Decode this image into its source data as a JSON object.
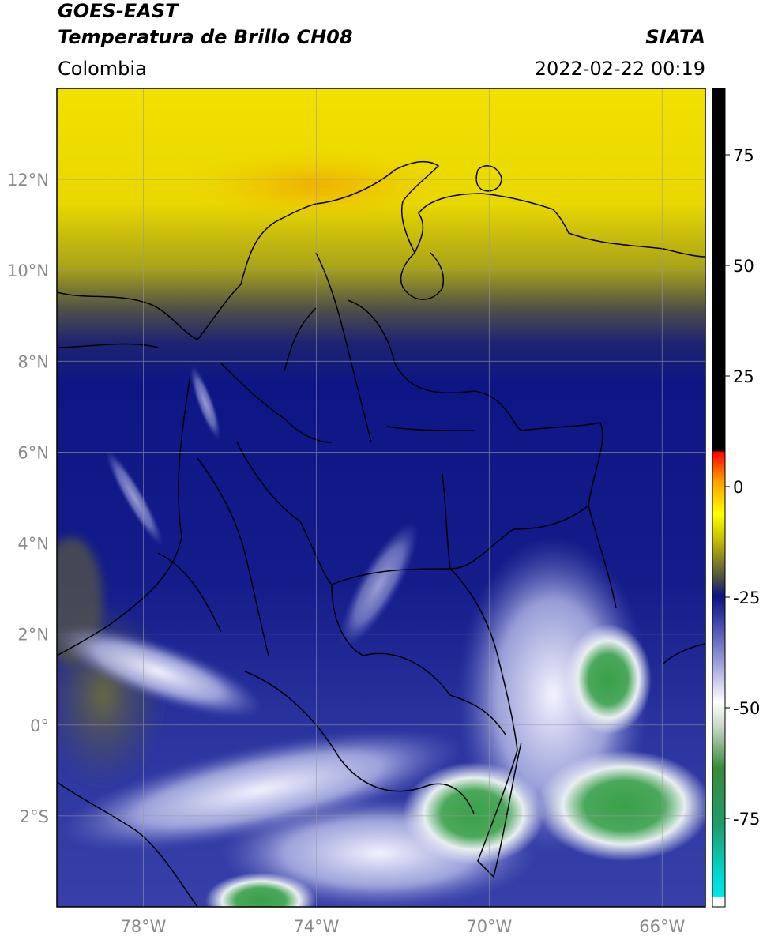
{
  "header": {
    "satellite": "GOES-EAST",
    "product": "Temperatura de Brillo CH08",
    "brand": "SIATA",
    "region": "Colombia",
    "timestamp": "2022-02-22 00:19"
  },
  "map": {
    "lon_ticks": [
      "78°W",
      "74°W",
      "70°W",
      "66°W"
    ],
    "lat_ticks": [
      "12°N",
      "10°N",
      "8°N",
      "6°N",
      "4°N",
      "2°N",
      "0°",
      "2°S"
    ],
    "lon_values": [
      -78,
      -74,
      -70,
      -66
    ],
    "lat_values": [
      12,
      10,
      8,
      6,
      4,
      2,
      0,
      -2
    ],
    "extent": {
      "lon_min": -80,
      "lon_max": -65,
      "lat_min": -4,
      "lat_max": 14
    },
    "grid": true
  },
  "colorbar": {
    "ticks": [
      "75",
      "50",
      "25",
      "0",
      "-25",
      "-50",
      "-75"
    ],
    "tick_values": [
      75,
      50,
      25,
      0,
      -25,
      -50,
      -75
    ],
    "range": [
      -95,
      90
    ],
    "colors": {
      "hot": "#000000",
      "red": "#ff0000",
      "orange": "#ff8c00",
      "yellow": "#ffff00",
      "olive": "#4a4a3a",
      "navy": "#0a147e",
      "lavender": "#8888cc",
      "white": "#ffffff",
      "green": "#2e8b2e",
      "cyan": "#00e5e5"
    }
  },
  "colors": {
    "ocean_yellow": "#f5df00",
    "olive_band": "#5a5a4a",
    "deep_blue": "#0e1a86",
    "mid_blue": "#3d44a6",
    "light_cloud": "#c8c8f0",
    "cold_green": "#3a9a4a",
    "coast": "#000000"
  }
}
